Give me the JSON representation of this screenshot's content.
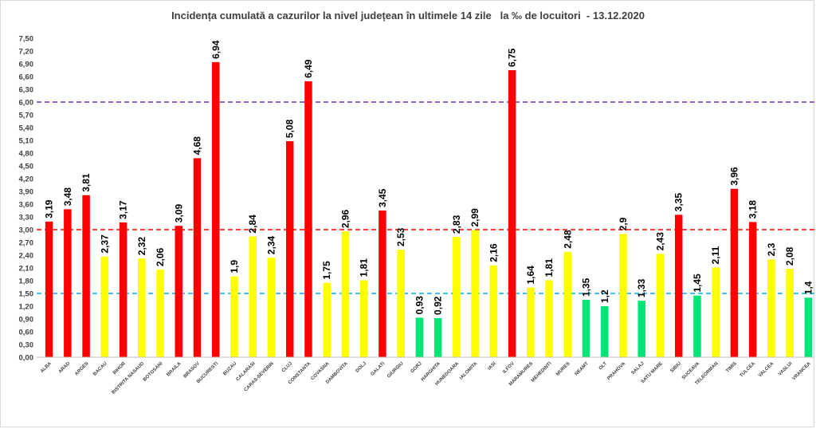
{
  "chart_data": {
    "type": "bar",
    "title": "Incidența cumulată a cazurilor la nivel județean în ultimele 14 zile   la ‰ de locuitori  - 13.12.2020",
    "xlabel": "",
    "ylabel": "",
    "ylim": [
      0,
      7.5
    ],
    "y_ticks": [
      "0,00",
      "0,30",
      "0,60",
      "0,90",
      "1,20",
      "1,50",
      "1,80",
      "2,10",
      "2,40",
      "2,70",
      "3,00",
      "3,30",
      "3,60",
      "3,90",
      "4,20",
      "4,50",
      "4,80",
      "5,10",
      "5,40",
      "5,70",
      "6,00",
      "6,30",
      "6,60",
      "6,90",
      "7,20",
      "7,50"
    ],
    "grid": false,
    "legend": "none",
    "categories": [
      "ALBA",
      "ARAD",
      "ARGES",
      "BACAU",
      "BIHOR",
      "BISTRITA NASAUD",
      "BOTOSANI",
      "BRAILA",
      "BRASOV",
      "BUCURESTI",
      "BUZAU",
      "CALARASI",
      "CARAS-SEVERIN",
      "CLUJ",
      "CONSTANTA",
      "COVASNA",
      "DAMBOVITA",
      "DOLJ",
      "GALATI",
      "GIURGIU",
      "GORJ",
      "HARGHITA",
      "HUNEDOARA",
      "IALOMITA",
      "IASI",
      "ILFOV",
      "MARAMURES",
      "MEHEDINTI",
      "MURES",
      "NEAMT",
      "OLT",
      "PRAHOVA",
      "SALAJ",
      "SATU MARE",
      "SIBIU",
      "SUCEAVA",
      "TELEORMAN",
      "TIMIS",
      "TULCEA",
      "VALCEA",
      "VASLUI",
      "VRANCEA"
    ],
    "values": [
      3.19,
      3.48,
      3.81,
      2.37,
      3.17,
      2.32,
      2.06,
      3.09,
      4.68,
      6.94,
      1.9,
      2.84,
      2.34,
      5.08,
      6.49,
      1.75,
      2.96,
      1.81,
      3.45,
      2.53,
      0.93,
      0.92,
      2.83,
      2.99,
      2.16,
      6.75,
      1.64,
      1.81,
      2.48,
      1.35,
      1.2,
      2.9,
      1.33,
      2.43,
      3.35,
      1.45,
      2.11,
      3.96,
      3.18,
      2.3,
      2.08,
      1.4
    ],
    "value_labels": [
      "3,19",
      "3,48",
      "3,81",
      "2,37",
      "3,17",
      "2,32",
      "2,06",
      "3,09",
      "4,68",
      "6,94",
      "1,9",
      "2,84",
      "2,34",
      "5,08",
      "6,49",
      "1,75",
      "2,96",
      "1,81",
      "3,45",
      "2,53",
      "0,93",
      "0,92",
      "2,83",
      "2,99",
      "2,16",
      "6,75",
      "1,64",
      "1,81",
      "2,48",
      "1,35",
      "1,2",
      "2,9",
      "1,33",
      "2,43",
      "3,35",
      "1,45",
      "2,11",
      "3,96",
      "3,18",
      "2,3",
      "2,08",
      "1,4"
    ],
    "thresholds": [
      {
        "value": 6.0,
        "color": "#7030a0",
        "style": "dashed"
      },
      {
        "value": 3.0,
        "color": "#ff0000",
        "style": "dashed"
      },
      {
        "value": 1.5,
        "color": "#00b0f0",
        "style": "dashed"
      }
    ],
    "colors": {
      "high": "#ff0000",
      "medium": "#ffff00",
      "low": "#00e676"
    }
  }
}
